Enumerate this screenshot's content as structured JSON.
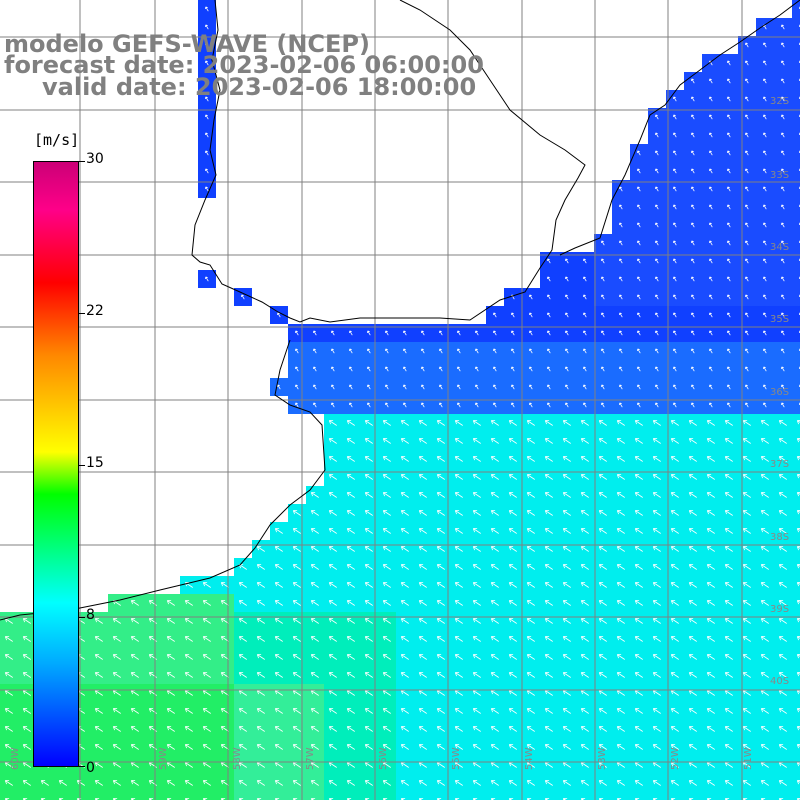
{
  "title": {
    "line1": "modelo GEFS-WAVE (NCEP)",
    "line2": "forecast date: 2023-02-06 06:00:00",
    "line3": "valid date: 2023-02-06 18:00:00"
  },
  "colorbar": {
    "unit": "[m/s]",
    "ticks": [
      "30",
      "22",
      "15",
      "8",
      "0"
    ],
    "colors": [
      "#0000ff",
      "#00aaff",
      "#00ffff",
      "#00ff00",
      "#ffff00",
      "#ff8800",
      "#ff0000",
      "#cc0077"
    ]
  },
  "map": {
    "lat_labels": [
      "32S",
      "33S",
      "34S",
      "35S",
      "36S",
      "37S",
      "38S",
      "39S",
      "40S"
    ],
    "lon_labels": [
      "60W",
      "59W",
      "58W",
      "57W",
      "56W",
      "55W",
      "54W",
      "53W",
      "52W",
      "51W"
    ],
    "colors": {
      "land": "#ffffff",
      "grid": "#808080",
      "coast": "#000000",
      "arrow": "#ffffff"
    }
  }
}
